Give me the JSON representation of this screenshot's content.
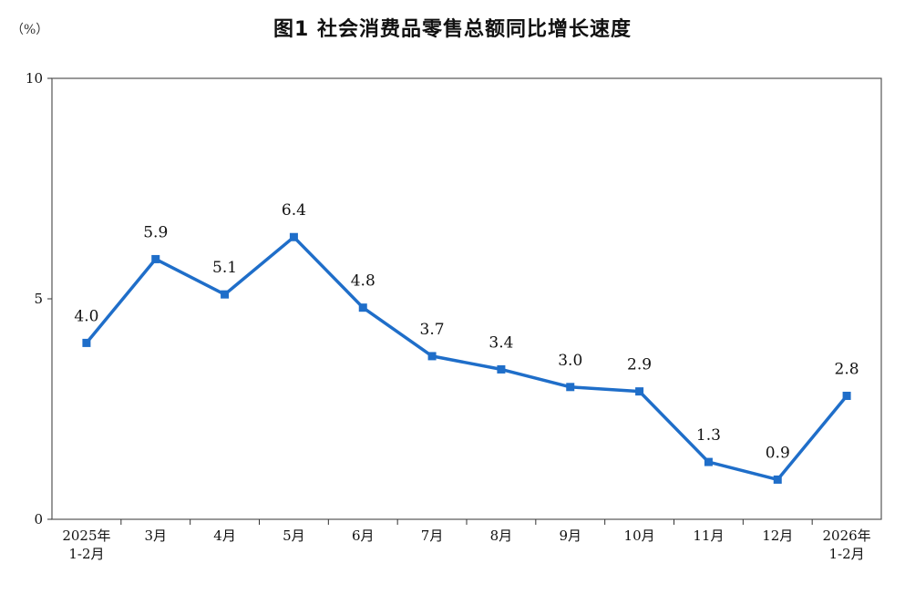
{
  "title": "图1  社会消费品零售总额同比增长速度",
  "unit_label": "（%）",
  "colors": {
    "line": "#1f6ec9",
    "axis": "#333333"
  },
  "chart_data": {
    "type": "line",
    "title": "图1  社会消费品零售总额同比增长速度",
    "ylabel": "（%）",
    "xlabel": "",
    "ylim": [
      0,
      10
    ],
    "yticks": [
      0,
      5,
      10
    ],
    "grid": false,
    "categories": [
      [
        "2025年",
        "1-2月"
      ],
      [
        "3月"
      ],
      [
        "4月"
      ],
      [
        "5月"
      ],
      [
        "6月"
      ],
      [
        "7月"
      ],
      [
        "8月"
      ],
      [
        "9月"
      ],
      [
        "10月"
      ],
      [
        "11月"
      ],
      [
        "12月"
      ],
      [
        "2026年",
        "1-2月"
      ]
    ],
    "series": [
      {
        "values": [
          4.0,
          5.9,
          5.1,
          6.4,
          4.8,
          3.7,
          3.4,
          3.0,
          2.9,
          1.3,
          0.9,
          2.8
        ]
      }
    ],
    "data_labels": [
      "4.0",
      "5.9",
      "5.1",
      "6.4",
      "4.8",
      "3.7",
      "3.4",
      "3.0",
      "2.9",
      "1.3",
      "0.9",
      "2.8"
    ]
  }
}
